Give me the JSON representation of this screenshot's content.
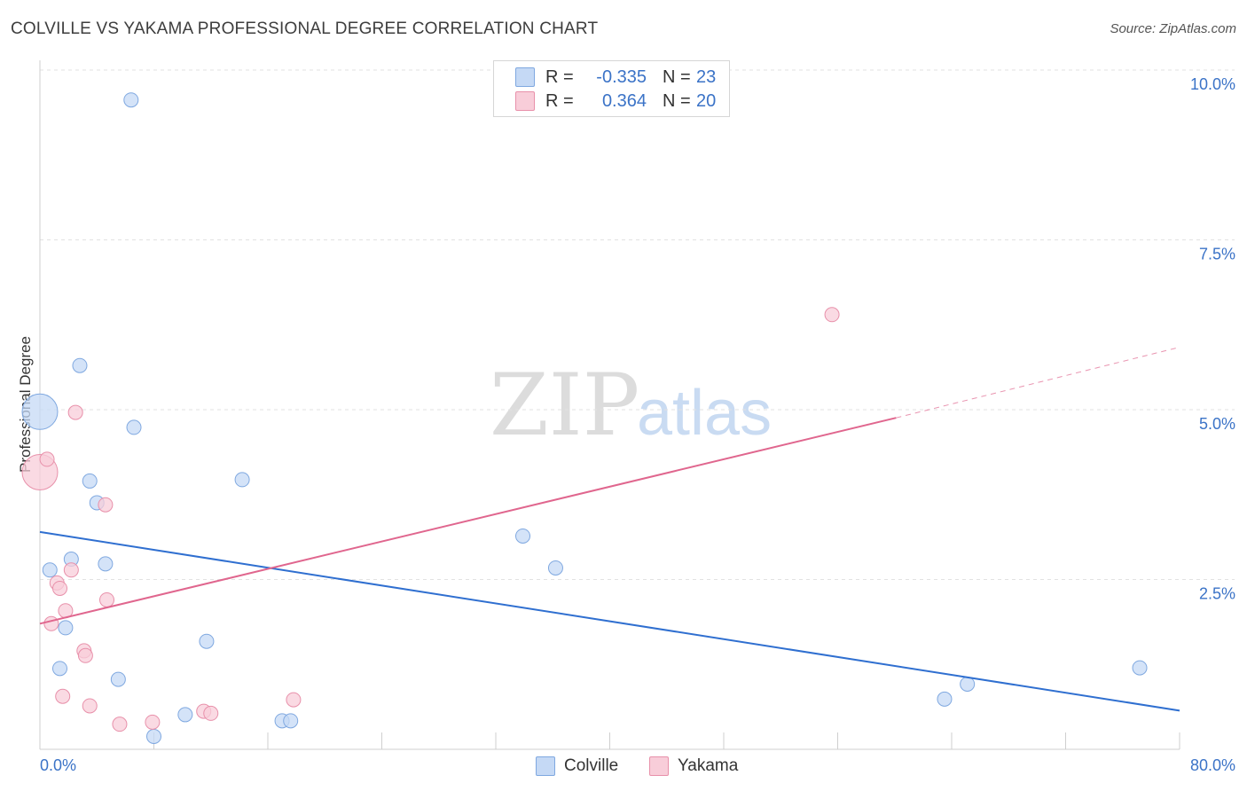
{
  "title": "COLVILLE VS YAKAMA PROFESSIONAL DEGREE CORRELATION CHART",
  "source": "Source: ZipAtlas.com",
  "legend": {
    "rows": [
      {
        "r_label": "R =",
        "r_value": "-0.335",
        "n_label": "N =",
        "n_value": "23"
      },
      {
        "r_label": "R =",
        "r_value": "0.364",
        "n_label": "N =",
        "n_value": "20"
      }
    ]
  },
  "bottom_legend": {
    "colville": "Colville",
    "yakama": "Yakama"
  },
  "colors": {
    "colville_fill": "#c5d9f5",
    "colville_stroke": "#7fa8e0",
    "colville_line": "#2f6fd0",
    "yakama_fill": "#f8cdd9",
    "yakama_stroke": "#e890aa",
    "yakama_line": "#e0668e",
    "tick_label": "#3b73c7",
    "grid": "#e2e2e2"
  },
  "chart_data": {
    "type": "scatter",
    "title": "COLVILLE VS YAKAMA PROFESSIONAL DEGREE CORRELATION CHART",
    "xlabel": "",
    "ylabel": "Professional Degree",
    "xlim": [
      0,
      80
    ],
    "ylim": [
      0,
      10.0
    ],
    "x_tick_labels": [
      "0.0%",
      "80.0%"
    ],
    "y_ticks": [
      2.5,
      5.0,
      7.5,
      10.0
    ],
    "y_tick_labels": [
      "2.5%",
      "5.0%",
      "7.5%",
      "10.0%"
    ],
    "watermark": {
      "zip": "ZIP",
      "atlas": "atlas"
    },
    "series": [
      {
        "name": "Colville",
        "r": -0.335,
        "n": 23,
        "points": [
          {
            "x": 0.0,
            "y": 4.97,
            "big": true
          },
          {
            "x": 6.4,
            "y": 9.56
          },
          {
            "x": 2.8,
            "y": 5.65
          },
          {
            "x": 6.6,
            "y": 4.74
          },
          {
            "x": 3.5,
            "y": 3.95
          },
          {
            "x": 4.0,
            "y": 3.63
          },
          {
            "x": 14.2,
            "y": 3.97
          },
          {
            "x": 0.7,
            "y": 2.64
          },
          {
            "x": 2.2,
            "y": 2.8
          },
          {
            "x": 4.6,
            "y": 2.73
          },
          {
            "x": 1.8,
            "y": 1.79
          },
          {
            "x": 33.9,
            "y": 3.14
          },
          {
            "x": 36.2,
            "y": 2.67
          },
          {
            "x": 11.7,
            "y": 1.59
          },
          {
            "x": 1.4,
            "y": 1.19
          },
          {
            "x": 5.5,
            "y": 1.03
          },
          {
            "x": 10.2,
            "y": 0.51
          },
          {
            "x": 8.0,
            "y": 0.19
          },
          {
            "x": 17.0,
            "y": 0.42
          },
          {
            "x": 17.6,
            "y": 0.42
          },
          {
            "x": 63.5,
            "y": 0.74
          },
          {
            "x": 65.1,
            "y": 0.96
          },
          {
            "x": 77.2,
            "y": 1.2
          }
        ],
        "trend": {
          "x0": 0,
          "y0": 3.2,
          "x1": 80,
          "y1": 0.57
        }
      },
      {
        "name": "Yakama",
        "r": 0.364,
        "n": 20,
        "points": [
          {
            "x": 0.0,
            "y": 4.08,
            "big": true
          },
          {
            "x": 0.5,
            "y": 4.27
          },
          {
            "x": 2.5,
            "y": 4.96
          },
          {
            "x": 4.6,
            "y": 3.6
          },
          {
            "x": 55.6,
            "y": 6.4
          },
          {
            "x": 2.2,
            "y": 2.64
          },
          {
            "x": 1.2,
            "y": 2.45
          },
          {
            "x": 1.4,
            "y": 2.37
          },
          {
            "x": 4.7,
            "y": 2.2
          },
          {
            "x": 1.8,
            "y": 2.04
          },
          {
            "x": 0.8,
            "y": 1.85
          },
          {
            "x": 3.1,
            "y": 1.45
          },
          {
            "x": 3.2,
            "y": 1.38
          },
          {
            "x": 1.6,
            "y": 0.78
          },
          {
            "x": 3.5,
            "y": 0.64
          },
          {
            "x": 5.6,
            "y": 0.37
          },
          {
            "x": 7.9,
            "y": 0.4
          },
          {
            "x": 11.5,
            "y": 0.56
          },
          {
            "x": 12.0,
            "y": 0.53
          },
          {
            "x": 17.8,
            "y": 0.73
          }
        ],
        "trend": {
          "x0": 0,
          "y0": 1.85,
          "x1": 60.1,
          "y1": 4.88,
          "dash_x1": 80,
          "dash_y1": 5.92
        }
      }
    ]
  }
}
